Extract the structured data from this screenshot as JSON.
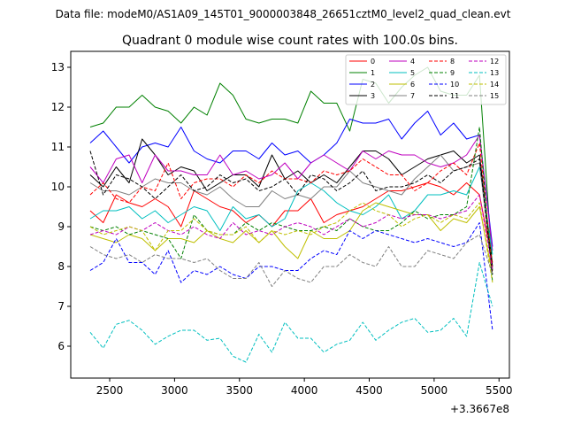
{
  "chart_data": {
    "type": "line",
    "suptitle": "Data file: modeM0/AS1A09_145T01_9000003848_26651cztM0_level2_quad_clean.evt",
    "title": "Quadrant 0 module wise count rates with 100.0s bins.",
    "xlabel": "",
    "ylabel": "",
    "x_offset_label": "+3.3667e8",
    "xlim": [
      2200,
      5580
    ],
    "ylim": [
      5.2,
      13.4
    ],
    "xticks": [
      2500,
      3000,
      3500,
      4000,
      4500,
      5000,
      5500
    ],
    "yticks": [
      6,
      7,
      8,
      9,
      10,
      11,
      12,
      13
    ],
    "x": [
      2350,
      2450,
      2550,
      2650,
      2750,
      2850,
      2950,
      3050,
      3150,
      3250,
      3350,
      3450,
      3550,
      3650,
      3750,
      3850,
      3950,
      4050,
      4150,
      4250,
      4350,
      4450,
      4550,
      4650,
      4750,
      4850,
      4950,
      5050,
      5150,
      5250,
      5350,
      5450
    ],
    "legend_position": "upper-right",
    "series": [
      {
        "name": "0",
        "color": "#ff0000",
        "dash": "solid",
        "values": [
          9.4,
          9.1,
          9.8,
          9.6,
          9.5,
          9.7,
          9.5,
          9.0,
          9.9,
          9.7,
          9.5,
          9.4,
          9.1,
          9.3,
          9.0,
          9.4,
          9.4,
          9.7,
          9.1,
          9.3,
          9.4,
          9.5,
          9.7,
          9.9,
          9.9,
          10.0,
          10.1,
          10.0,
          9.8,
          10.1,
          9.8,
          8.1
        ]
      },
      {
        "name": "1",
        "color": "#008000",
        "dash": "solid",
        "values": [
          11.5,
          11.6,
          12.0,
          12.0,
          12.3,
          12.0,
          11.9,
          11.6,
          12.0,
          11.8,
          12.6,
          12.3,
          11.7,
          11.6,
          11.7,
          11.7,
          11.6,
          12.4,
          12.1,
          12.1,
          11.4,
          12.7,
          12.6,
          12.1,
          12.5,
          12.8,
          13.0,
          12.4,
          12.3,
          12.3,
          12.8,
          7.9
        ]
      },
      {
        "name": "2",
        "color": "#0000ff",
        "dash": "solid",
        "values": [
          11.1,
          11.4,
          11.0,
          10.6,
          11.0,
          11.1,
          11.0,
          11.5,
          10.9,
          10.7,
          10.6,
          10.9,
          10.9,
          10.7,
          11.1,
          10.8,
          10.9,
          10.6,
          10.8,
          11.1,
          11.7,
          11.6,
          11.6,
          11.7,
          11.2,
          11.6,
          11.9,
          11.3,
          11.6,
          11.2,
          11.3,
          8.5
        ]
      },
      {
        "name": "3",
        "color": "#000000",
        "dash": "solid",
        "values": [
          10.3,
          10.0,
          10.5,
          10.1,
          11.2,
          10.8,
          10.3,
          10.5,
          10.4,
          9.9,
          10.1,
          10.3,
          10.3,
          10.0,
          10.8,
          10.2,
          10.4,
          10.1,
          10.3,
          10.1,
          10.5,
          10.9,
          10.9,
          10.7,
          10.3,
          10.5,
          10.7,
          10.8,
          10.9,
          10.6,
          10.8,
          8.0
        ]
      },
      {
        "name": "4",
        "color": "#bf00bf",
        "dash": "solid",
        "values": [
          10.5,
          10.1,
          10.7,
          10.8,
          10.1,
          10.8,
          10.4,
          10.4,
          10.3,
          10.3,
          10.8,
          10.3,
          10.4,
          10.2,
          10.3,
          10.6,
          10.2,
          10.6,
          10.8,
          10.6,
          10.4,
          10.9,
          10.7,
          10.9,
          10.8,
          10.8,
          10.6,
          10.5,
          10.6,
          10.8,
          11.3,
          8.4
        ]
      },
      {
        "name": "5",
        "color": "#00bfbf",
        "dash": "solid",
        "values": [
          9.2,
          9.4,
          9.4,
          9.5,
          9.2,
          9.4,
          9.1,
          9.3,
          9.5,
          9.4,
          8.9,
          9.5,
          9.2,
          9.3,
          9.0,
          9.2,
          9.9,
          10.1,
          9.9,
          9.6,
          9.4,
          9.3,
          9.5,
          9.8,
          9.2,
          9.4,
          9.8,
          9.8,
          9.9,
          9.8,
          10.5,
          8.3
        ]
      },
      {
        "name": "6",
        "color": "#bfbf00",
        "dash": "solid",
        "values": [
          8.8,
          8.7,
          8.6,
          8.8,
          8.7,
          8.4,
          8.7,
          8.7,
          8.6,
          8.9,
          8.7,
          8.6,
          8.9,
          8.6,
          8.9,
          8.5,
          8.2,
          8.9,
          8.7,
          8.7,
          8.9,
          9.4,
          9.6,
          9.5,
          9.4,
          9.3,
          9.3,
          8.9,
          9.2,
          9.1,
          9.5,
          7.8
        ]
      },
      {
        "name": "7",
        "color": "#808080",
        "dash": "solid",
        "values": [
          10.1,
          9.9,
          9.9,
          9.8,
          10.0,
          10.2,
          10.1,
          10.1,
          9.9,
          9.8,
          10.0,
          9.7,
          9.5,
          9.5,
          9.9,
          9.7,
          9.8,
          9.7,
          10.0,
          10.0,
          10.4,
          10.1,
          10.0,
          9.9,
          9.8,
          10.2,
          10.5,
          10.8,
          10.4,
          10.5,
          10.6,
          7.8
        ]
      },
      {
        "name": "8",
        "color": "#ff0000",
        "dash": "dashed",
        "values": [
          9.8,
          10.1,
          9.7,
          9.6,
          10.0,
          9.9,
          10.6,
          9.7,
          10.1,
          10.2,
          10.2,
          10.0,
          10.3,
          10.1,
          10.4,
          10.2,
          10.2,
          10.1,
          10.4,
          10.3,
          10.4,
          10.7,
          10.5,
          10.3,
          10.3,
          9.9,
          10.1,
          10.4,
          10.6,
          10.3,
          11.1,
          7.9
        ]
      },
      {
        "name": "9",
        "color": "#008000",
        "dash": "dashed",
        "values": [
          9.0,
          8.9,
          9.0,
          8.8,
          8.9,
          8.8,
          8.7,
          8.2,
          9.3,
          8.9,
          8.8,
          8.8,
          9.1,
          8.9,
          9.1,
          9.0,
          8.9,
          8.9,
          9.0,
          8.9,
          9.2,
          9.0,
          8.9,
          8.9,
          9.1,
          9.4,
          9.2,
          9.3,
          9.3,
          9.5,
          11.5,
          7.6
        ]
      },
      {
        "name": "10",
        "color": "#0000ff",
        "dash": "dashed",
        "values": [
          7.9,
          8.1,
          8.7,
          8.1,
          8.1,
          7.8,
          8.4,
          7.6,
          7.9,
          7.8,
          8.0,
          7.8,
          7.7,
          8.0,
          8.0,
          7.9,
          7.9,
          8.2,
          8.4,
          8.3,
          8.9,
          8.7,
          8.9,
          8.8,
          8.7,
          8.6,
          8.7,
          8.6,
          8.5,
          8.6,
          9.1,
          6.4
        ]
      },
      {
        "name": "11",
        "color": "#000000",
        "dash": "dashed",
        "values": [
          10.9,
          9.8,
          10.3,
          10.2,
          10.0,
          9.7,
          10.0,
          10.3,
          9.9,
          10.0,
          10.3,
          10.1,
          10.2,
          9.9,
          10.0,
          10.2,
          9.8,
          10.3,
          10.2,
          9.9,
          10.1,
          10.4,
          9.9,
          10.0,
          10.0,
          10.1,
          10.3,
          10.1,
          10.4,
          10.5,
          10.7,
          7.8
        ]
      },
      {
        "name": "12",
        "color": "#bf00bf",
        "dash": "dashed",
        "values": [
          8.8,
          8.9,
          8.8,
          9.0,
          8.9,
          9.1,
          8.9,
          8.8,
          9.0,
          8.8,
          8.7,
          9.1,
          8.8,
          8.9,
          8.8,
          9.0,
          9.1,
          9.0,
          8.8,
          9.0,
          9.2,
          9.0,
          9.1,
          9.3,
          9.2,
          9.3,
          9.3,
          9.2,
          9.3,
          9.4,
          9.8,
          7.9
        ]
      },
      {
        "name": "13",
        "color": "#00bfbf",
        "dash": "dashed",
        "values": [
          6.35,
          5.95,
          6.55,
          6.65,
          6.4,
          6.05,
          6.25,
          6.4,
          6.4,
          6.15,
          6.2,
          5.75,
          5.6,
          6.3,
          5.85,
          6.6,
          6.2,
          6.2,
          5.85,
          6.05,
          6.15,
          6.6,
          6.15,
          6.4,
          6.6,
          6.7,
          6.35,
          6.4,
          6.7,
          6.25,
          8.1,
          7.0
        ]
      },
      {
        "name": "14",
        "color": "#bfbf00",
        "dash": "dashed",
        "values": [
          9.0,
          8.8,
          8.9,
          9.0,
          8.9,
          8.4,
          8.9,
          8.9,
          9.2,
          8.9,
          8.8,
          8.8,
          9.0,
          8.6,
          8.9,
          8.8,
          8.9,
          8.8,
          9.0,
          9.1,
          9.4,
          9.6,
          9.4,
          9.3,
          9.0,
          9.2,
          9.3,
          9.1,
          9.3,
          9.2,
          9.6,
          7.6
        ]
      },
      {
        "name": "15",
        "color": "#808080",
        "dash": "dashed",
        "values": [
          8.5,
          8.3,
          8.2,
          8.3,
          8.1,
          8.3,
          8.2,
          8.2,
          8.1,
          8.2,
          7.9,
          7.7,
          7.7,
          8.1,
          7.5,
          7.9,
          7.7,
          7.6,
          8.0,
          8.0,
          8.3,
          8.1,
          8.0,
          8.5,
          8.0,
          8.0,
          8.4,
          8.3,
          8.2,
          8.6,
          8.8,
          7.8
        ]
      }
    ]
  }
}
